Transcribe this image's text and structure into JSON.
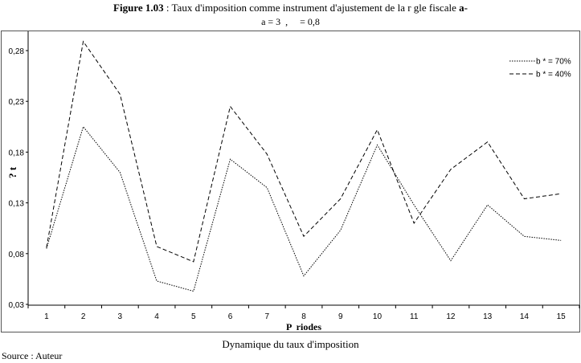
{
  "figure": {
    "label": "Figure 1.03",
    "title": " : Taux d'imposition comme instrument d'ajustement de la r  gle fiscale ",
    "title_suffix": "a-",
    "subtitle": "a = 3  ,     = 0,8"
  },
  "caption": "Dynamique du taux d'imposition",
  "source": "Source : Auteur",
  "chart_data": {
    "type": "line",
    "xlabel": "P  riodes",
    "ylabel": "? t",
    "x": [
      1,
      2,
      3,
      4,
      5,
      6,
      7,
      8,
      9,
      10,
      11,
      12,
      13,
      14,
      15
    ],
    "ylim": [
      0.03,
      0.3
    ],
    "yticks": [
      0.03,
      0.08,
      0.13,
      0.18,
      0.23,
      0.28
    ],
    "ytick_labels": [
      "0,03",
      "0,08",
      "0,13",
      "0,18",
      "0,23",
      "0,28"
    ],
    "grid": false,
    "legend_position": "top-right",
    "series": [
      {
        "name": "b * = 70%",
        "style": "dotted",
        "values": [
          0.085,
          0.205,
          0.16,
          0.053,
          0.043,
          0.173,
          0.145,
          0.058,
          0.103,
          0.187,
          0.128,
          0.073,
          0.128,
          0.097,
          0.093
        ]
      },
      {
        "name": "b * = 40%",
        "style": "dashed",
        "values": [
          0.086,
          0.289,
          0.237,
          0.087,
          0.072,
          0.225,
          0.178,
          0.097,
          0.134,
          0.202,
          0.11,
          0.163,
          0.19,
          0.134,
          0.139
        ]
      }
    ]
  }
}
